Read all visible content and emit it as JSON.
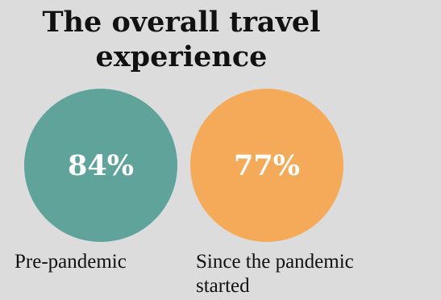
{
  "title": "The overall travel experience",
  "items": [
    {
      "value": "84%",
      "label": "Pre-pandemic",
      "color": "#5fa39b"
    },
    {
      "value": "77%",
      "label": "Since the pandemic started",
      "color": "#f5aa59"
    }
  ]
}
